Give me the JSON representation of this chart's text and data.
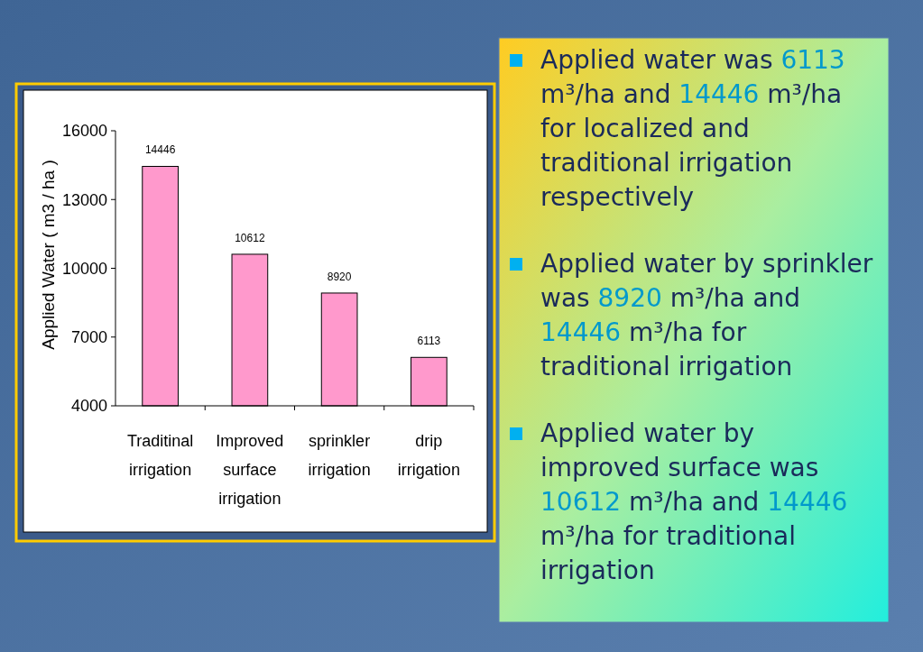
{
  "chart_data": {
    "type": "bar",
    "categories": [
      "Traditinal irrigation",
      "Improved surface irrigation",
      "sprinkler irrigation",
      "drip irrigation"
    ],
    "values": [
      14446,
      10612,
      8920,
      6113
    ],
    "color": "#ff99cc",
    "ylabel": "Applied Water ( m3 / ha )",
    "ylim": [
      4000,
      16000
    ],
    "yticks": [
      4000,
      7000,
      10000,
      13000,
      16000
    ],
    "data_labels": true,
    "annotations": [
      "Applied water was 6113 m³/ha and 14446 m³/ha for localized and traditional irrigation respectively",
      "Applied water by sprinkler was 8920 m³/ha and 14446 m³/ha for traditional irrigation",
      "Applied water by improved surface was 10612 m³/ha and 14446 m³/ha for traditional irrigation"
    ]
  }
}
